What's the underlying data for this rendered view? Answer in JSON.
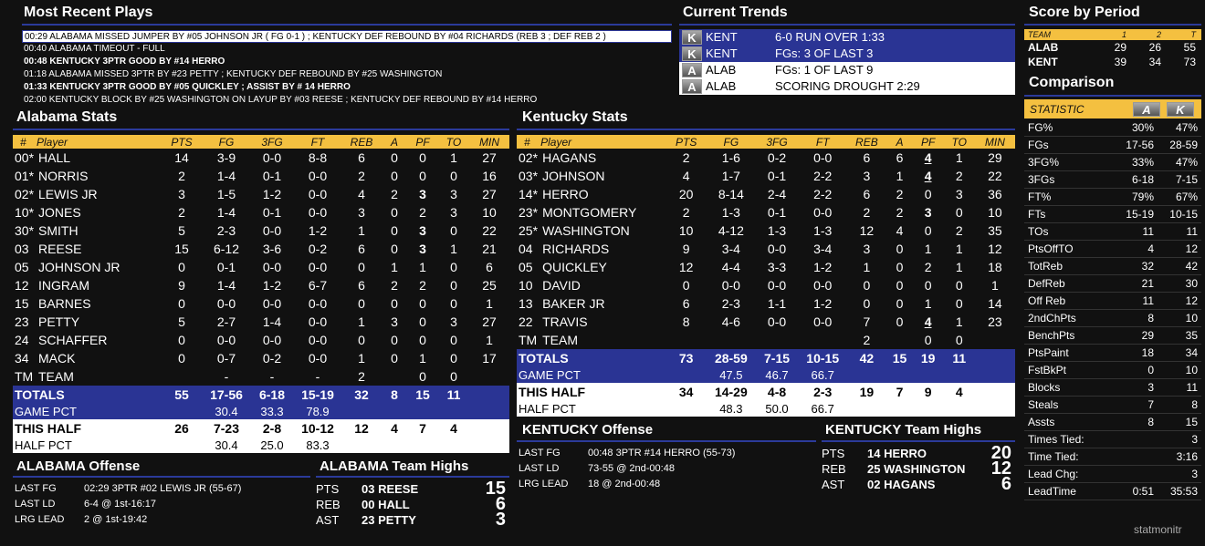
{
  "plays": {
    "title": "Most Recent Plays",
    "rows": [
      {
        "text": "00:29  ALABAMA MISSED JUMPER BY #05 JOHNSON JR ( FG 0-1 ) ;   KENTUCKY DEF REBOUND BY #04 RICHARDS (REB 3 ; DEF REB 2 )",
        "bold": false,
        "selected": true
      },
      {
        "text": "00:40  ALABAMA TIMEOUT - FULL",
        "bold": false,
        "selected": false
      },
      {
        "text": "00:48  KENTUCKY 3PTR GOOD BY #14 HERRO",
        "bold": true,
        "selected": false
      },
      {
        "text": "01:18  ALABAMA MISSED 3PTR BY #23 PETTY ;  KENTUCKY DEF REBOUND BY #25 WASHINGTON",
        "bold": false,
        "selected": false
      },
      {
        "text": "01:33  KENTUCKY 3PTR GOOD BY #05 QUICKLEY ;   ASSIST BY # 14 HERRO",
        "bold": true,
        "selected": false
      },
      {
        "text": "02:00  KENTUCKY BLOCK BY #25 WASHINGTON ON LAYUP BY #03 REESE ;  KENTUCKY DEF REBOUND BY #14 HERRO",
        "bold": false,
        "selected": false
      }
    ]
  },
  "trends": {
    "title": "Current Trends",
    "rows": [
      {
        "badge": "K",
        "team": "KENT",
        "text": "6-0 RUN OVER 1:33",
        "style": "blue"
      },
      {
        "badge": "K",
        "team": "KENT",
        "text": "FGs: 3 OF LAST 3",
        "style": "blue"
      },
      {
        "badge": "A",
        "team": "ALAB",
        "text": "FGs: 1 OF LAST 9",
        "style": "white"
      },
      {
        "badge": "A",
        "team": "ALAB",
        "text": "SCORING DROUGHT 2:29",
        "style": "white"
      }
    ]
  },
  "score": {
    "title": "Score by Period",
    "headers": [
      "TEAM",
      "1",
      "2",
      "T"
    ],
    "rows": [
      [
        "ALAB",
        "29",
        "26",
        "55"
      ],
      [
        "KENT",
        "39",
        "34",
        "73"
      ]
    ]
  },
  "comparison": {
    "title": "Comparison",
    "header": "STATISTIC",
    "badge_a": "A",
    "badge_k": "K",
    "rows": [
      [
        "FG%",
        "30%",
        "47%"
      ],
      [
        "FGs",
        "17-56",
        "28-59"
      ],
      [
        "3FG%",
        "33%",
        "47%"
      ],
      [
        "3FGs",
        "6-18",
        "7-15"
      ],
      [
        "FT%",
        "79%",
        "67%"
      ],
      [
        "FTs",
        "15-19",
        "10-15"
      ],
      [
        "TOs",
        "11",
        "11"
      ],
      [
        "PtsOffTO",
        "4",
        "12"
      ],
      [
        "TotReb",
        "32",
        "42"
      ],
      [
        "DefReb",
        "21",
        "30"
      ],
      [
        "Off Reb",
        "11",
        "12"
      ],
      [
        "2ndChPts",
        "8",
        "10"
      ],
      [
        "BenchPts",
        "29",
        "35"
      ],
      [
        "PtsPaint",
        "18",
        "34"
      ],
      [
        "FstBkPt",
        "0",
        "10"
      ],
      [
        "Blocks",
        "3",
        "11"
      ],
      [
        "Steals",
        "7",
        "8"
      ],
      [
        "Assts",
        "8",
        "15"
      ],
      [
        "Times Tied:",
        "",
        "3"
      ],
      [
        "Time Tied:",
        "",
        "3:16"
      ],
      [
        "Lead Chg:",
        "",
        "3"
      ],
      [
        "LeadTime",
        "0:51",
        "35:53"
      ]
    ]
  },
  "columns": [
    "#",
    "Player",
    "PTS",
    "FG",
    "3FG",
    "FT",
    "REB",
    "A",
    "PF",
    "TO",
    "MIN"
  ],
  "alabama": {
    "title": "Alabama Stats",
    "players": [
      [
        "00*",
        "HALL",
        "14",
        "3-9",
        "0-0",
        "8-8",
        "6",
        "0",
        "0",
        "1",
        "27"
      ],
      [
        "01*",
        "NORRIS",
        "2",
        "1-4",
        "0-1",
        "0-0",
        "2",
        "0",
        "0",
        "0",
        "16"
      ],
      [
        "02*",
        "LEWIS JR",
        "3",
        "1-5",
        "1-2",
        "0-0",
        "4",
        "2",
        "3",
        "3",
        "27"
      ],
      [
        "10*",
        "JONES",
        "2",
        "1-4",
        "0-1",
        "0-0",
        "3",
        "0",
        "2",
        "3",
        "10"
      ],
      [
        "30*",
        "SMITH",
        "5",
        "2-3",
        "0-0",
        "1-2",
        "1",
        "0",
        "3",
        "0",
        "22"
      ],
      [
        "03",
        "REESE",
        "15",
        "6-12",
        "3-6",
        "0-2",
        "6",
        "0",
        "3",
        "1",
        "21"
      ],
      [
        "05",
        "JOHNSON JR",
        "0",
        "0-1",
        "0-0",
        "0-0",
        "0",
        "1",
        "1",
        "0",
        "6"
      ],
      [
        "12",
        "INGRAM",
        "9",
        "1-4",
        "1-2",
        "6-7",
        "6",
        "2",
        "2",
        "0",
        "25"
      ],
      [
        "15",
        "BARNES",
        "0",
        "0-0",
        "0-0",
        "0-0",
        "0",
        "0",
        "0",
        "0",
        "1"
      ],
      [
        "23",
        "PETTY",
        "5",
        "2-7",
        "1-4",
        "0-0",
        "1",
        "3",
        "0",
        "3",
        "27"
      ],
      [
        "24",
        "SCHAFFER",
        "0",
        "0-0",
        "0-0",
        "0-0",
        "0",
        "0",
        "0",
        "0",
        "1"
      ],
      [
        "34",
        "MACK",
        "0",
        "0-7",
        "0-2",
        "0-0",
        "1",
        "0",
        "1",
        "0",
        "17"
      ],
      [
        "TM",
        "TEAM",
        "",
        "-",
        "-",
        "-",
        "2",
        "",
        "0",
        "0",
        ""
      ]
    ],
    "pf_bold": [
      2,
      4,
      5
    ],
    "totals": [
      "TOTALS",
      "55",
      "17-56",
      "6-18",
      "15-19",
      "32",
      "8",
      "15",
      "11"
    ],
    "game_pct": [
      "GAME PCT",
      "30.4",
      "33.3",
      "78.9"
    ],
    "this_half": [
      "THIS HALF",
      "26",
      "7-23",
      "2-8",
      "10-12",
      "12",
      "4",
      "7",
      "4"
    ],
    "half_pct": [
      "HALF PCT",
      "30.4",
      "25.0",
      "83.3"
    ]
  },
  "kentucky": {
    "title": "Kentucky Stats",
    "players": [
      [
        "02*",
        "HAGANS",
        "2",
        "1-6",
        "0-2",
        "0-0",
        "6",
        "6",
        "4",
        "1",
        "29"
      ],
      [
        "03*",
        "JOHNSON",
        "4",
        "1-7",
        "0-1",
        "2-2",
        "3",
        "1",
        "4",
        "2",
        "22"
      ],
      [
        "14*",
        "HERRO",
        "20",
        "8-14",
        "2-4",
        "2-2",
        "6",
        "2",
        "0",
        "3",
        "36"
      ],
      [
        "23*",
        "MONTGOMERY",
        "2",
        "1-3",
        "0-1",
        "0-0",
        "2",
        "2",
        "3",
        "0",
        "10"
      ],
      [
        "25*",
        "WASHINGTON",
        "10",
        "4-12",
        "1-3",
        "1-3",
        "12",
        "4",
        "0",
        "2",
        "35"
      ],
      [
        "04",
        "RICHARDS",
        "9",
        "3-4",
        "0-0",
        "3-4",
        "3",
        "0",
        "1",
        "1",
        "12"
      ],
      [
        "05",
        "QUICKLEY",
        "12",
        "4-4",
        "3-3",
        "1-2",
        "1",
        "0",
        "2",
        "1",
        "18"
      ],
      [
        "10",
        "DAVID",
        "0",
        "0-0",
        "0-0",
        "0-0",
        "0",
        "0",
        "0",
        "0",
        "1"
      ],
      [
        "13",
        "BAKER JR",
        "6",
        "2-3",
        "1-1",
        "1-2",
        "0",
        "0",
        "1",
        "0",
        "14"
      ],
      [
        "22",
        "TRAVIS",
        "8",
        "4-6",
        "0-0",
        "0-0",
        "7",
        "0",
        "4",
        "1",
        "23"
      ],
      [
        "TM",
        "TEAM",
        "",
        "",
        "",
        "",
        "2",
        "",
        "0",
        "0",
        ""
      ]
    ],
    "pf_underline": [
      0,
      1,
      9
    ],
    "pf_bold": [
      3
    ],
    "totals": [
      "TOTALS",
      "73",
      "28-59",
      "7-15",
      "10-15",
      "42",
      "15",
      "19",
      "11"
    ],
    "game_pct": [
      "GAME PCT",
      "47.5",
      "46.7",
      "66.7"
    ],
    "this_half": [
      "THIS HALF",
      "34",
      "14-29",
      "4-8",
      "2-3",
      "19",
      "7",
      "9",
      "4"
    ],
    "half_pct": [
      "HALF PCT",
      "48.3",
      "50.0",
      "66.7"
    ]
  },
  "alabama_offense": {
    "title": "ALABAMA Offense",
    "rows": [
      [
        "LAST FG",
        "02:29 3PTR #02 LEWIS JR (55-67)"
      ],
      [
        "LAST LD",
        "6-4 @ 1st-16:17"
      ],
      [
        "LRG LEAD",
        "2 @ 1st-19:42"
      ]
    ]
  },
  "alabama_highs": {
    "title": "ALABAMA Team Highs",
    "rows": [
      [
        "PTS",
        "03 REESE",
        "15"
      ],
      [
        "REB",
        "00 HALL",
        "6"
      ],
      [
        "AST",
        "23 PETTY",
        "3"
      ]
    ]
  },
  "kentucky_offense": {
    "title": "KENTUCKY Offense",
    "rows": [
      [
        "LAST FG",
        "00:48 3PTR #14 HERRO (55-73)"
      ],
      [
        "LAST LD",
        "73-55 @ 2nd-00:48"
      ],
      [
        "LRG LEAD",
        "18 @ 2nd-00:48"
      ]
    ]
  },
  "kentucky_highs": {
    "title": "KENTUCKY Team Highs",
    "rows": [
      [
        "PTS",
        "14 HERRO",
        "20"
      ],
      [
        "REB",
        "25 WASHINGTON",
        "12"
      ],
      [
        "AST",
        "02 HAGANS",
        "6"
      ]
    ]
  },
  "brand": "statmonitr",
  "colors": {
    "accent_blue": "#2a3494",
    "header_gold": "#f4c040",
    "background": "#111111"
  }
}
